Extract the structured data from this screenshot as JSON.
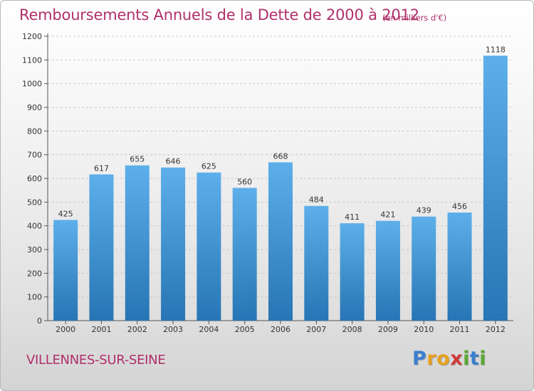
{
  "header": {
    "title": "Remboursements Annuels de la Dette de 2000 à 2012",
    "unit": "(en milliers d'€)"
  },
  "footer": {
    "city": "VILLENNES-SUR-SEINE",
    "logo_text": "Proxiti",
    "logo_letters": [
      {
        "ch": "P",
        "color": "#3a7fcf"
      },
      {
        "ch": "r",
        "color": "#e8a020"
      },
      {
        "ch": "o",
        "color": "#e8a020"
      },
      {
        "ch": "x",
        "color": "#d03a3a"
      },
      {
        "ch": "i",
        "color": "#5aa832"
      },
      {
        "ch": "t",
        "color": "#3a7fcf"
      },
      {
        "ch": "i",
        "color": "#5aa832"
      }
    ]
  },
  "colors": {
    "bar_top": "#5dafea",
    "bar_bottom": "#2775b4",
    "title": "#b0306a",
    "grid": "#c8c8c8"
  },
  "chart_data": {
    "type": "bar",
    "title": "Remboursements Annuels de la Dette de 2000 à 2012",
    "xlabel": "",
    "ylabel": "",
    "categories": [
      "2000",
      "2001",
      "2002",
      "2003",
      "2004",
      "2005",
      "2006",
      "2007",
      "2008",
      "2009",
      "2010",
      "2011",
      "2012"
    ],
    "values": [
      425,
      617,
      655,
      646,
      625,
      560,
      668,
      484,
      411,
      421,
      439,
      456,
      1118
    ],
    "value_labels": [
      "425",
      "617",
      "655",
      "646",
      "625",
      "560",
      "668",
      "484",
      "411",
      "421",
      "439",
      "456",
      "1118"
    ],
    "ylim": [
      0,
      1200
    ],
    "yticks": [
      0,
      100,
      200,
      300,
      400,
      500,
      600,
      700,
      800,
      900,
      1000,
      1100,
      1200
    ],
    "grid": true
  }
}
